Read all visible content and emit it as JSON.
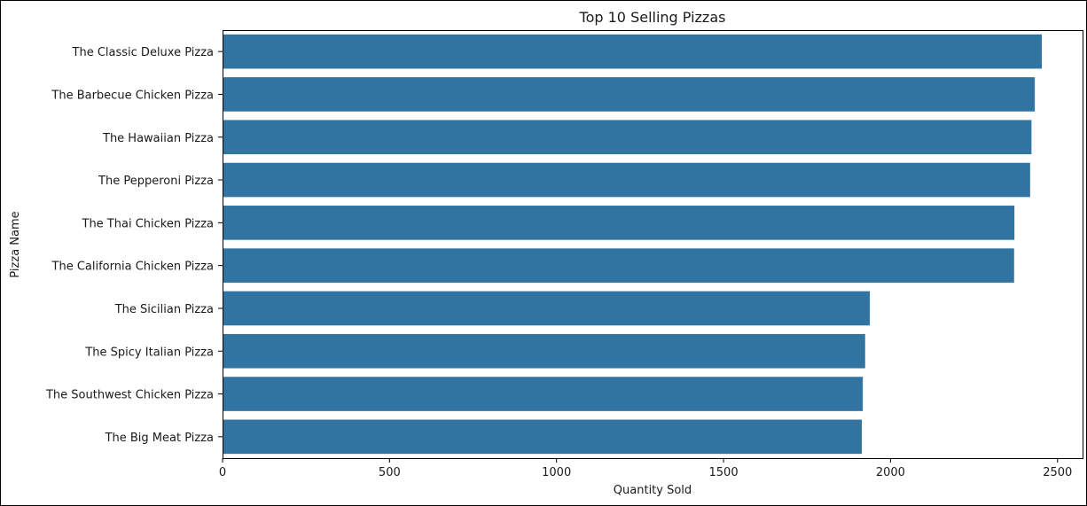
{
  "chart_data": {
    "type": "bar",
    "orientation": "horizontal",
    "title": "Top 10 Selling Pizzas",
    "xlabel": "Quantity Sold",
    "ylabel": "Pizza Name",
    "xlim": [
      0,
      2575
    ],
    "xticks": [
      0,
      500,
      1000,
      1500,
      2000,
      2500
    ],
    "categories": [
      "The Classic Deluxe Pizza",
      "The Barbecue Chicken Pizza",
      "The Hawaiian Pizza",
      "The Pepperoni Pizza",
      "The Thai Chicken Pizza",
      "The California Chicken Pizza",
      "The Sicilian Pizza",
      "The Spicy Italian Pizza",
      "The Southwest Chicken Pizza",
      "The Big Meat Pizza"
    ],
    "values": [
      2453,
      2432,
      2422,
      2418,
      2371,
      2370,
      1938,
      1924,
      1917,
      1914
    ],
    "bar_color": "#3274a1",
    "grid": false,
    "legend": "none"
  }
}
